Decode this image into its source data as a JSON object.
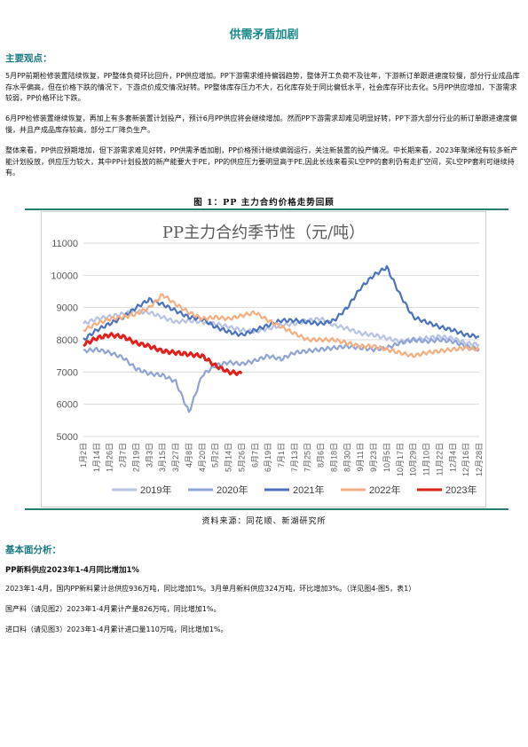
{
  "page_title": "供需矛盾加剧",
  "section1": {
    "heading": "主要观点：",
    "p1": "5月PP前期检修装置陆续恢复，PP整体负荷环比回升，PP供应增加。PP下游需求维持偏弱趋势，整体开工负荷不及往年，下游新订单跟进速度较慢，部分行业成品库存水平偏高，但在价格下跌的情况下，下游点价成交情况好转。PP整体库存压力不大，石化库存处于同比偏低水平，社会库存环比去化。5月PP供应增加，下游需求较弱，PP价格环比下跌。",
    "p2": "6月PP检修装置继续恢复，再加上有多套新装置计划投产，预计6月PP供应将会继续增加。然而PP下游需求却难见明显好转，PP下游大部分行业的新订单跟进速度偏慢，并且产成品库存较高，部分工厂降负生产。",
    "p3": "整体来看，PP供应预期增加，但下游需求难见好转，PP供需矛盾加剧，PP价格预计继续偏弱运行，关注新装置的投产情况。中长期来看，2023年聚烯烃有较多新产能计划投放，供应压力较大，其中PP计划投放的新产能要大于PE，PP的供应压力要明显高于PE,因此长线来看买L空PP的套利仍有走扩空间，买L空PP套利可继续持有。"
  },
  "figure": {
    "caption": "图 1：PP 主力合约价格走势回顾",
    "source": "资料来源：同花顺、新湖研究所"
  },
  "chart_data": {
    "type": "line",
    "title": "PP主力合约季节性（元/吨）",
    "ylim": [
      5000,
      11000
    ],
    "yticks": [
      5000,
      6000,
      7000,
      8000,
      9000,
      10000,
      11000
    ],
    "x_labels": [
      "1月2日",
      "1月14日",
      "1月26日",
      "2月7日",
      "2月19日",
      "3月3日",
      "3月15日",
      "3月27日",
      "4月8日",
      "4月20日",
      "5月2日",
      "5月14日",
      "5月26日",
      "6月7日",
      "6月19日",
      "7月1日",
      "7月13日",
      "7月25日",
      "8月6日",
      "8月18日",
      "8月30日",
      "9月11日",
      "9月23日",
      "10月5日",
      "10月17日",
      "10月29日",
      "11月10日",
      "11月22日",
      "12月4日",
      "12月16日",
      "12月28日"
    ],
    "legend_position": "bottom",
    "grid": true,
    "series": [
      {
        "name": "2019年",
        "color": "#b7c3e3",
        "values": [
          8500,
          8650,
          8720,
          8800,
          8880,
          8850,
          8700,
          8550,
          8600,
          8550,
          8500,
          8400,
          8300,
          8250,
          8350,
          8450,
          8500,
          8600,
          8650,
          8450,
          8350,
          8200,
          8150,
          8050,
          7950,
          8000,
          8050,
          8100,
          8050,
          7900,
          7850
        ]
      },
      {
        "name": "2020年",
        "color": "#8ea4d4",
        "values": [
          7650,
          7700,
          7600,
          7450,
          7100,
          6950,
          6900,
          6700,
          5750,
          6900,
          7200,
          7300,
          7250,
          7350,
          7500,
          7400,
          7600,
          7650,
          7700,
          7750,
          7800,
          7750,
          7700,
          7750,
          7900,
          8000,
          7950,
          8000,
          7950,
          7800,
          7700
        ]
      },
      {
        "name": "2021年",
        "color": "#4a72bd",
        "values": [
          8000,
          8300,
          8500,
          8700,
          9000,
          9250,
          9100,
          8900,
          8700,
          8650,
          8400,
          8250,
          8150,
          8300,
          8450,
          8600,
          8600,
          8550,
          8500,
          8600,
          9000,
          9600,
          10000,
          10250,
          9400,
          8700,
          8550,
          8400,
          8300,
          8150,
          8100
        ]
      },
      {
        "name": "2022年",
        "color": "#f4ae80",
        "values": [
          8300,
          8500,
          8650,
          8700,
          8800,
          9000,
          9400,
          9100,
          8850,
          8650,
          8700,
          8650,
          8750,
          8850,
          8600,
          8400,
          8200,
          8000,
          8000,
          8000,
          7900,
          7800,
          7800,
          7700,
          7600,
          7500,
          7600,
          7650,
          7700,
          7750,
          7700
        ]
      },
      {
        "name": "2023年",
        "color": "#e0201b",
        "values": [
          7850,
          8050,
          8150,
          8100,
          7900,
          7800,
          7650,
          7600,
          7550,
          7500,
          7200,
          7000,
          6950
        ]
      }
    ]
  },
  "section2": {
    "heading": "基本面分析：",
    "subhead": "PP新料供应2023年1-4月同比增加1%",
    "p1": "2023年1-4月，国内PP新料累计总供应936万吨，同比增加1%。3月单月新料供应324万吨，环比增加3%。（详见图4-图5，表1）",
    "p2": "国产料（请见图2）2023年1-4月累计产量826万吨，同比增加1%。",
    "p3": "进口料（请见图3）2023年1-4月累计进口量110万吨，同比增加1%。"
  }
}
